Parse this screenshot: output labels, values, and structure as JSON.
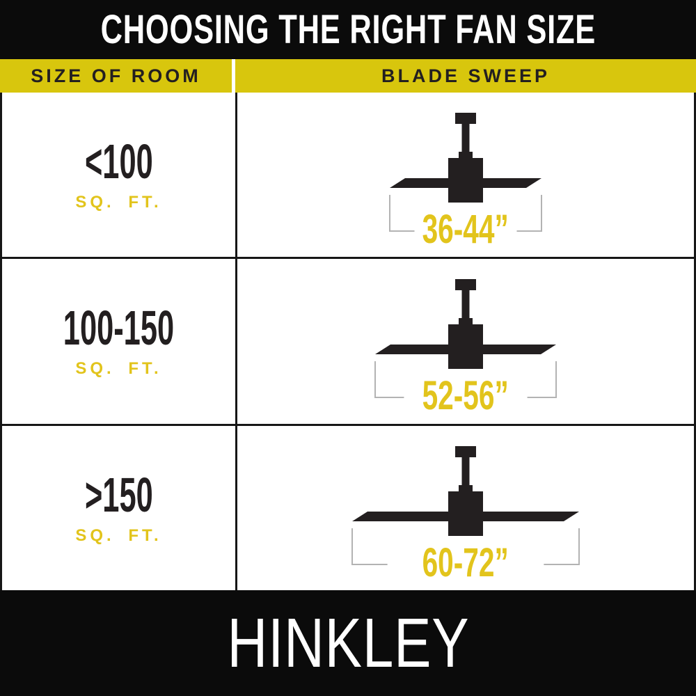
{
  "title": "CHOOSING THE RIGHT FAN SIZE",
  "brand": "HINKLEY",
  "table": {
    "column_headers": [
      "SIZE OF ROOM",
      "BLADE SWEEP"
    ],
    "rows": [
      {
        "size": "<100",
        "unit": "SQ. FT.",
        "sweep": "36-44”"
      },
      {
        "size": "100-150",
        "unit": "SQ. FT.",
        "sweep": "52-56”"
      },
      {
        "size": ">150",
        "unit": "SQ. FT.",
        "sweep": "60-72”"
      }
    ]
  },
  "colors": {
    "bg_black": "#0b0b0b",
    "band_yellow": "#d8c60d",
    "accent_yellow": "#e2c41c",
    "ink": "#231f20",
    "line": "#161616",
    "bracket": "#b3b3b3",
    "white": "#ffffff"
  },
  "chart_data": {
    "type": "table",
    "title": "CHOOSING THE RIGHT FAN SIZE",
    "columns": [
      "SIZE OF ROOM",
      "BLADE SWEEP"
    ],
    "rows": [
      [
        "<100 SQ. FT.",
        "36-44”"
      ],
      [
        "100-150 SQ. FT.",
        "52-56”"
      ],
      [
        ">150 SQ. FT.",
        "60-72”"
      ]
    ]
  }
}
